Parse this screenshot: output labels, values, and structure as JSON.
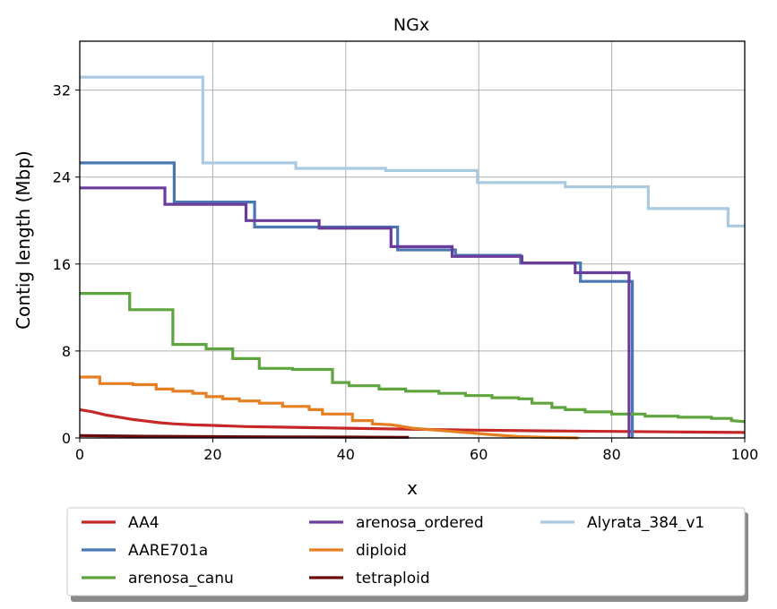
{
  "chart_data": {
    "type": "line",
    "title": "NGx",
    "xlabel": "x",
    "ylabel": "Contig length (Mbp)",
    "xlim": [
      0,
      100
    ],
    "ylim": [
      0,
      36.5
    ],
    "xticks": [
      0,
      20,
      40,
      60,
      80,
      100
    ],
    "yticks": [
      0,
      8,
      16,
      24,
      32
    ],
    "grid": true,
    "legend": {
      "placement": "below",
      "columns": 3
    },
    "series": [
      {
        "name": "AA4",
        "color": "#c62828",
        "points": [
          [
            0,
            2.6
          ],
          [
            2,
            2.4
          ],
          [
            4,
            2.1
          ],
          [
            6,
            1.9
          ],
          [
            8,
            1.7
          ],
          [
            10,
            1.55
          ],
          [
            12,
            1.4
          ],
          [
            14,
            1.3
          ],
          [
            17,
            1.2
          ],
          [
            20,
            1.15
          ],
          [
            25,
            1.05
          ],
          [
            30,
            1.0
          ],
          [
            35,
            0.95
          ],
          [
            40,
            0.9
          ],
          [
            50,
            0.8
          ],
          [
            60,
            0.72
          ],
          [
            70,
            0.65
          ],
          [
            80,
            0.6
          ],
          [
            90,
            0.55
          ],
          [
            100,
            0.5
          ]
        ]
      },
      {
        "name": "AARE701a",
        "color": "#4a77b2",
        "points": [
          [
            0,
            25.3
          ],
          [
            14.2,
            25.3
          ],
          [
            14.2,
            21.7
          ],
          [
            26.3,
            21.7
          ],
          [
            26.3,
            19.4
          ],
          [
            47.8,
            19.4
          ],
          [
            47.8,
            17.3
          ],
          [
            56.5,
            17.3
          ],
          [
            56.5,
            16.8
          ],
          [
            66.3,
            16.8
          ],
          [
            66.3,
            16.1
          ],
          [
            75.3,
            16.1
          ],
          [
            75.3,
            14.4
          ],
          [
            83.1,
            14.4
          ],
          [
            83.1,
            0
          ]
        ]
      },
      {
        "name": "arenosa_canu",
        "color": "#5fa43e",
        "points": [
          [
            0,
            13.3
          ],
          [
            7.5,
            13.3
          ],
          [
            7.5,
            11.8
          ],
          [
            14,
            11.8
          ],
          [
            14,
            8.6
          ],
          [
            19,
            8.6
          ],
          [
            19,
            8.2
          ],
          [
            23,
            8.2
          ],
          [
            23,
            7.3
          ],
          [
            27,
            7.3
          ],
          [
            27,
            6.4
          ],
          [
            32,
            6.4
          ],
          [
            32,
            6.3
          ],
          [
            38,
            6.3
          ],
          [
            38,
            5.1
          ],
          [
            40.5,
            5.1
          ],
          [
            40.5,
            4.8
          ],
          [
            45,
            4.8
          ],
          [
            45,
            4.5
          ],
          [
            49,
            4.5
          ],
          [
            49,
            4.3
          ],
          [
            54,
            4.3
          ],
          [
            54,
            4.1
          ],
          [
            58,
            4.1
          ],
          [
            58,
            3.9
          ],
          [
            62,
            3.9
          ],
          [
            62,
            3.7
          ],
          [
            66,
            3.7
          ],
          [
            66,
            3.6
          ],
          [
            68,
            3.6
          ],
          [
            68,
            3.2
          ],
          [
            71,
            3.2
          ],
          [
            71,
            2.8
          ],
          [
            73,
            2.8
          ],
          [
            73,
            2.6
          ],
          [
            76,
            2.6
          ],
          [
            76,
            2.4
          ],
          [
            80,
            2.4
          ],
          [
            80,
            2.2
          ],
          [
            85,
            2.2
          ],
          [
            85,
            2.0
          ],
          [
            90,
            2.0
          ],
          [
            90,
            1.9
          ],
          [
            95,
            1.9
          ],
          [
            95,
            1.8
          ],
          [
            98,
            1.8
          ],
          [
            98,
            1.6
          ],
          [
            100,
            1.5
          ]
        ]
      },
      {
        "name": "arenosa_ordered",
        "color": "#6a3d9a",
        "points": [
          [
            0,
            23.0
          ],
          [
            12.8,
            23.0
          ],
          [
            12.8,
            21.5
          ],
          [
            25,
            21.5
          ],
          [
            25,
            20.0
          ],
          [
            36,
            20.0
          ],
          [
            36,
            19.3
          ],
          [
            46.8,
            19.3
          ],
          [
            46.8,
            17.6
          ],
          [
            56,
            17.6
          ],
          [
            56,
            16.7
          ],
          [
            66.5,
            16.7
          ],
          [
            66.5,
            16.1
          ],
          [
            74.5,
            16.1
          ],
          [
            74.5,
            15.2
          ],
          [
            82.6,
            15.2
          ],
          [
            82.6,
            0
          ]
        ]
      },
      {
        "name": "diploid",
        "color": "#e67e22",
        "points": [
          [
            0,
            5.6
          ],
          [
            3,
            5.6
          ],
          [
            3,
            5.0
          ],
          [
            8,
            5.0
          ],
          [
            8,
            4.9
          ],
          [
            11.5,
            4.9
          ],
          [
            11.5,
            4.5
          ],
          [
            14,
            4.5
          ],
          [
            14,
            4.3
          ],
          [
            17,
            4.3
          ],
          [
            17,
            4.1
          ],
          [
            19,
            4.1
          ],
          [
            19,
            3.8
          ],
          [
            21.5,
            3.8
          ],
          [
            21.5,
            3.6
          ],
          [
            24,
            3.6
          ],
          [
            24,
            3.4
          ],
          [
            27,
            3.4
          ],
          [
            27,
            3.2
          ],
          [
            30.5,
            3.2
          ],
          [
            30.5,
            2.9
          ],
          [
            34.5,
            2.9
          ],
          [
            34.5,
            2.6
          ],
          [
            36.5,
            2.6
          ],
          [
            36.5,
            2.2
          ],
          [
            41,
            2.2
          ],
          [
            41,
            1.6
          ],
          [
            44,
            1.6
          ],
          [
            44,
            1.3
          ],
          [
            47,
            1.2
          ],
          [
            50,
            0.9
          ],
          [
            54,
            0.7
          ],
          [
            58,
            0.5
          ],
          [
            62,
            0.3
          ],
          [
            66,
            0.12
          ],
          [
            70,
            0.05
          ],
          [
            75,
            0
          ]
        ]
      },
      {
        "name": "tetraploid",
        "color": "#6b0a0a",
        "points": [
          [
            0,
            0.22
          ],
          [
            10,
            0.16
          ],
          [
            20,
            0.12
          ],
          [
            30,
            0.1
          ],
          [
            40,
            0.08
          ],
          [
            49.5,
            0.06
          ]
        ]
      },
      {
        "name": "Alyrata_384_v1",
        "color": "#a9cae0",
        "points": [
          [
            0,
            33.2
          ],
          [
            18.5,
            33.2
          ],
          [
            18.5,
            25.3
          ],
          [
            32.5,
            25.3
          ],
          [
            32.5,
            24.8
          ],
          [
            46,
            24.8
          ],
          [
            46,
            24.6
          ],
          [
            59.8,
            24.6
          ],
          [
            59.8,
            23.5
          ],
          [
            73,
            23.5
          ],
          [
            73,
            23.1
          ],
          [
            85.5,
            23.1
          ],
          [
            85.5,
            21.1
          ],
          [
            97.5,
            21.1
          ],
          [
            97.5,
            19.5
          ],
          [
            100,
            19.5
          ]
        ]
      }
    ]
  }
}
